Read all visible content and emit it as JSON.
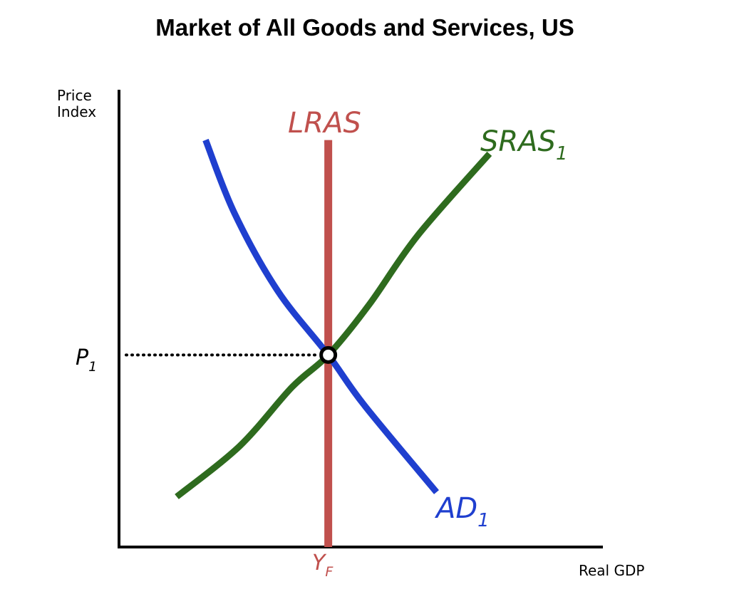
{
  "chart_data": {
    "type": "line",
    "title": "Market of All Goods and Services, US",
    "ylabel_line1": "Price",
    "ylabel_line2": "Index",
    "xlabel": "Real GDP",
    "xlim": [
      0,
      10
    ],
    "ylim": [
      0,
      10
    ],
    "series": [
      {
        "name": "LRAS",
        "label": "LRAS",
        "label_sub": "",
        "color": "#c0504d",
        "kind": "vertical",
        "x": 4.35,
        "y_range": [
          0,
          8.9
        ]
      },
      {
        "name": "SRAS1",
        "label": "SRAS",
        "label_sub": "1",
        "color": "#2e6b1e",
        "kind": "curve",
        "points": [
          [
            1.2,
            1.1
          ],
          [
            2.5,
            2.2
          ],
          [
            3.6,
            3.5
          ],
          [
            4.35,
            4.2
          ],
          [
            5.2,
            5.3
          ],
          [
            6.2,
            6.8
          ],
          [
            7.7,
            8.6
          ]
        ]
      },
      {
        "name": "AD1",
        "label": "AD",
        "label_sub": "1",
        "color": "#1f3fcf",
        "kind": "curve",
        "points": [
          [
            1.8,
            8.9
          ],
          [
            2.4,
            7.3
          ],
          [
            3.3,
            5.6
          ],
          [
            4.35,
            4.2
          ],
          [
            5.1,
            3.1
          ],
          [
            6.6,
            1.2
          ]
        ]
      }
    ],
    "equilibrium": {
      "x": 4.35,
      "y": 4.2
    },
    "ticks": {
      "x": {
        "label": "Y",
        "sub": "F",
        "color": "#c0504d"
      },
      "y": {
        "label": "P",
        "sub": "1",
        "color": "#000000"
      }
    }
  }
}
